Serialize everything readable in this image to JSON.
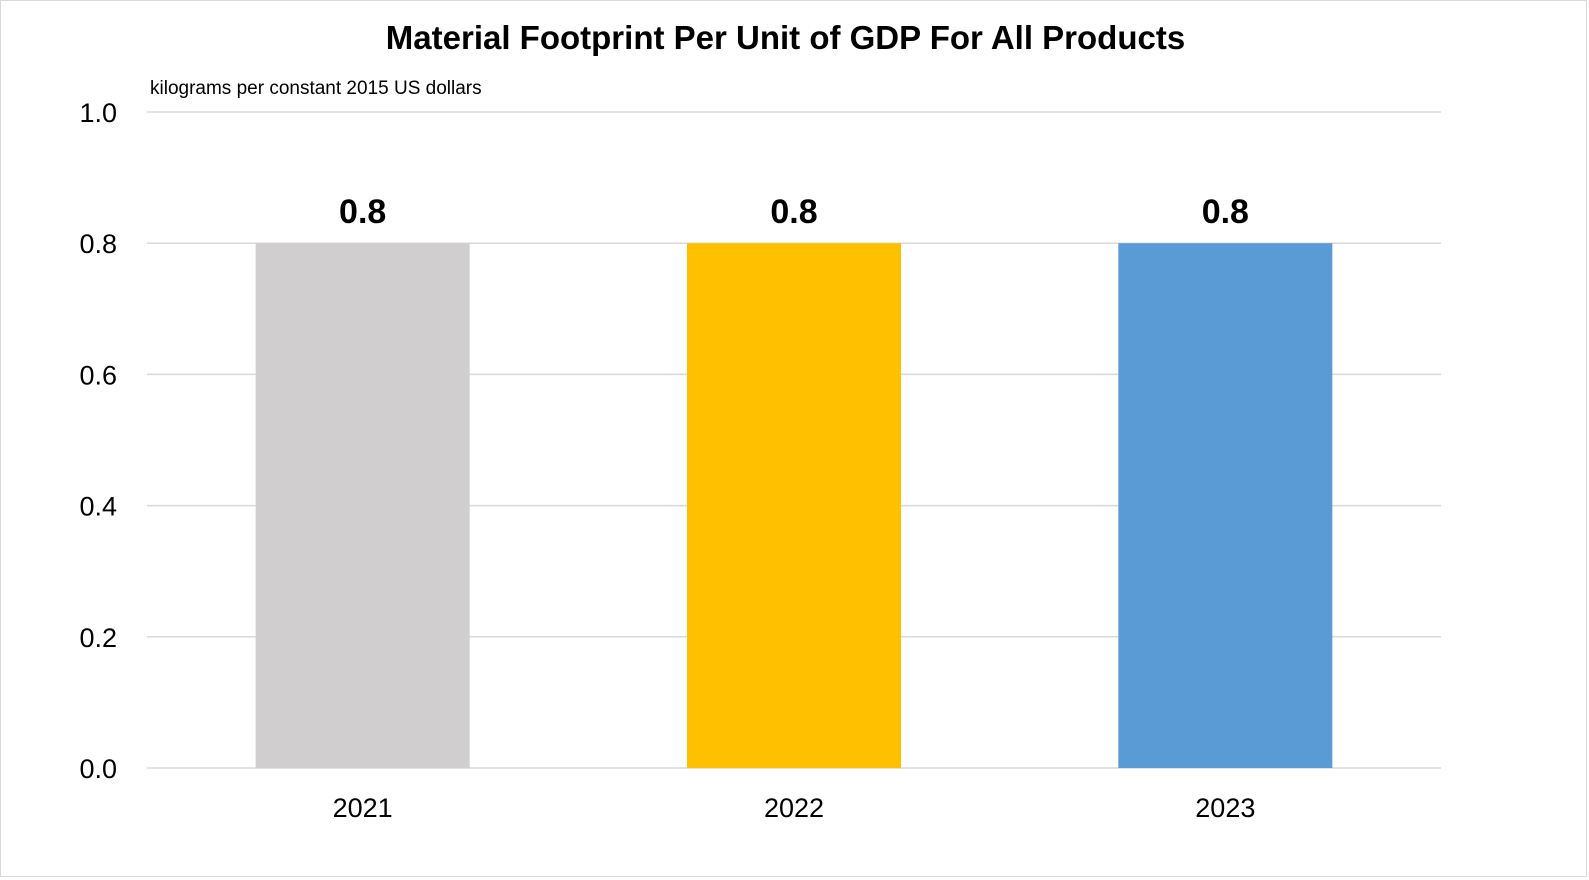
{
  "chart_data": {
    "type": "bar",
    "title": "Material Footprint Per Unit of GDP For All Products",
    "ylabel": "kilograms per constant 2015 US dollars",
    "xlabel": "",
    "categories": [
      "2021",
      "2022",
      "2023"
    ],
    "values": [
      0.8,
      0.8,
      0.8
    ],
    "data_labels": [
      "0.8",
      "0.8",
      "0.8"
    ],
    "colors": [
      "#d0cece",
      "#ffc000",
      "#5b9bd5"
    ],
    "ylim": [
      0,
      1.0
    ],
    "yticks": [
      "0.0",
      "0.2",
      "0.4",
      "0.6",
      "0.8",
      "1.0"
    ],
    "grid": true,
    "legend": "none"
  }
}
